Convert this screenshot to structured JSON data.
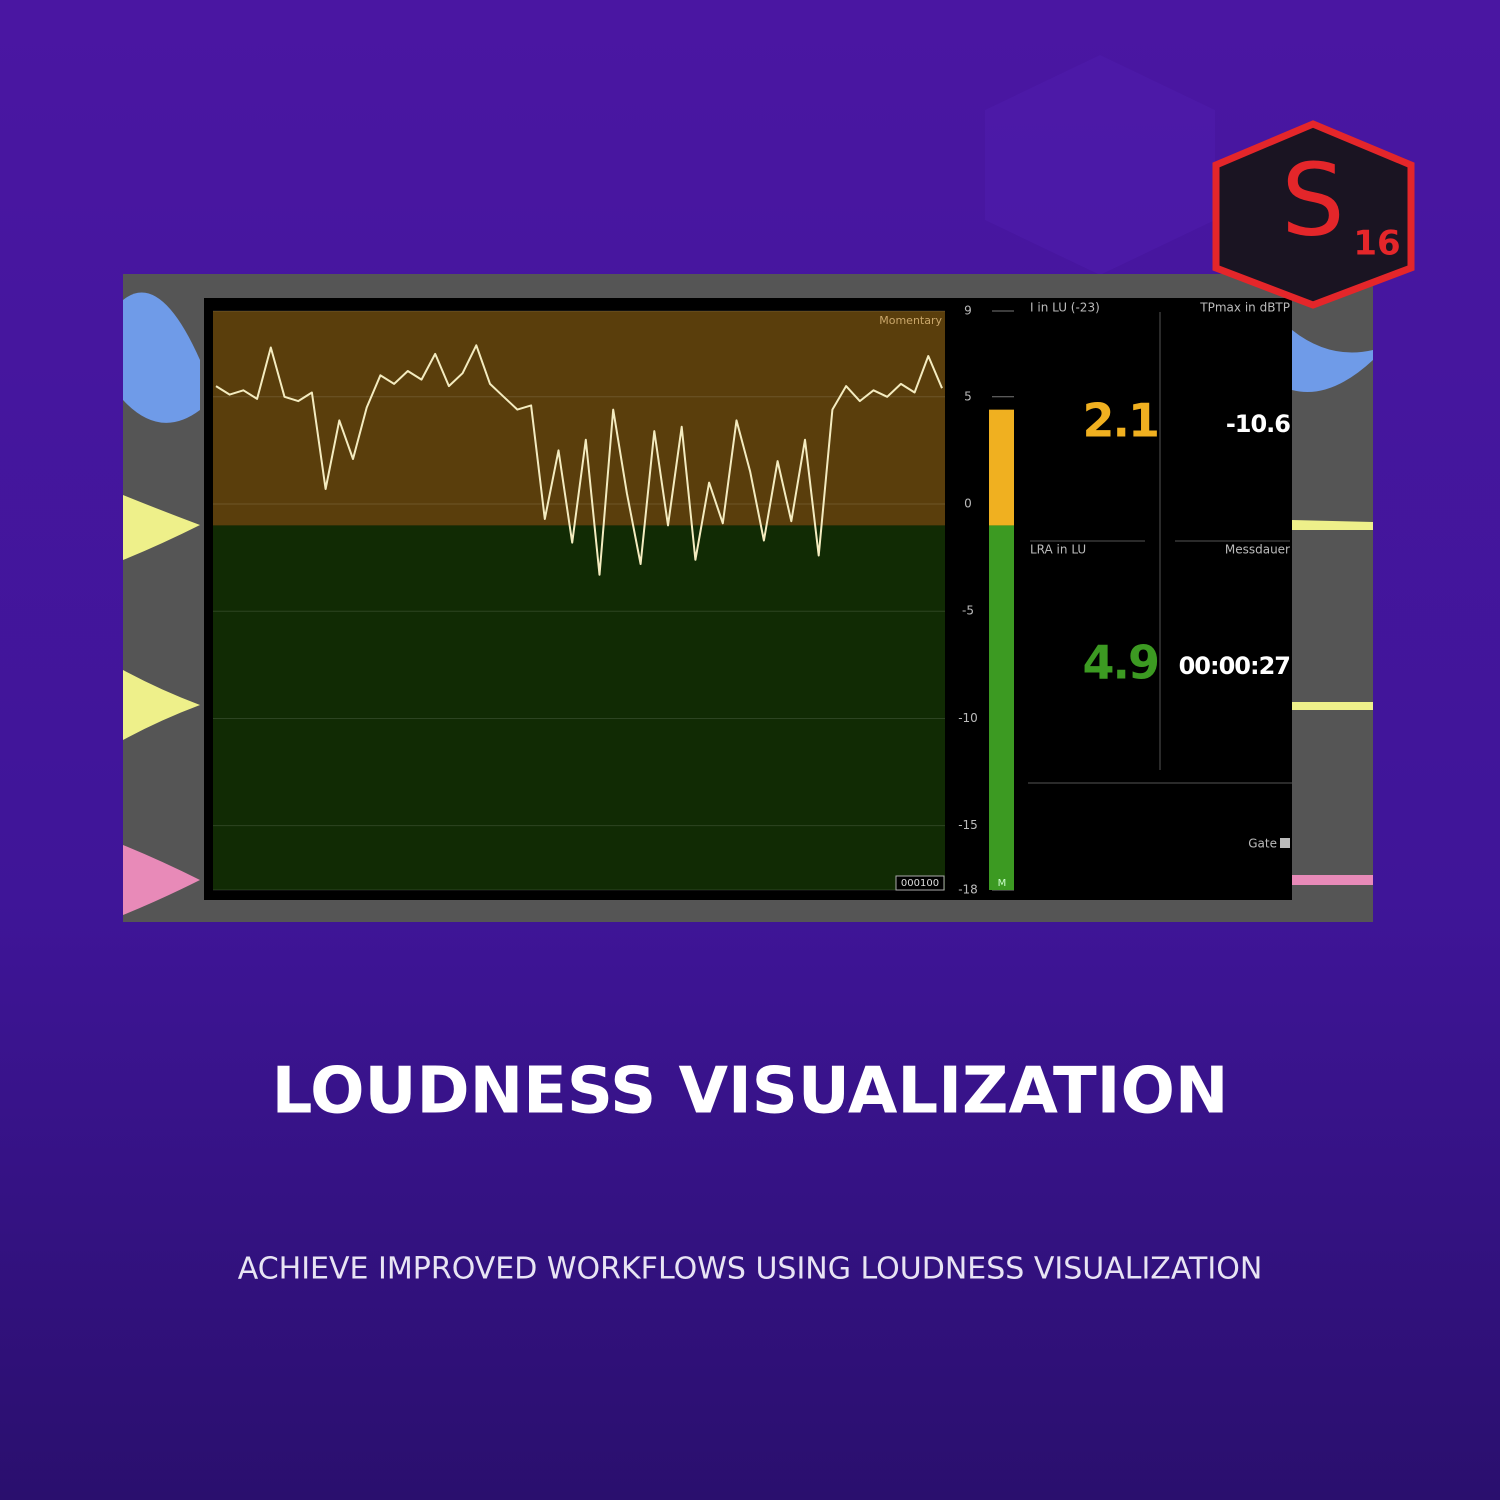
{
  "logo": {
    "letter": "S",
    "version": "16"
  },
  "meter": {
    "graph_label": "Momentary",
    "counter": "000100",
    "channel": "M",
    "scale": [
      9,
      5,
      0,
      -5,
      -10,
      -15,
      -18
    ],
    "level": 4.4,
    "threshold": -1,
    "momentary": [
      5.5,
      5.1,
      5.3,
      4.9,
      7.3,
      5.0,
      4.8,
      5.2,
      0.7,
      3.9,
      2.1,
      4.5,
      6.0,
      5.6,
      6.2,
      5.8,
      7.0,
      5.5,
      6.1,
      7.4,
      5.6,
      5.0,
      4.4,
      4.6,
      -0.7,
      2.5,
      -1.8,
      3.0,
      -3.3,
      4.4,
      0.5,
      -2.8,
      3.4,
      -1.0,
      3.6,
      -2.6,
      1.0,
      -0.9,
      3.9,
      1.5,
      -1.7,
      2.0,
      -0.8,
      3.0,
      -2.4,
      4.4,
      5.5,
      4.8,
      5.3,
      5.0,
      5.6,
      5.2,
      6.9,
      5.4
    ]
  },
  "readouts": [
    {
      "label": "I in LU (-23)",
      "value": "2.1"
    },
    {
      "label": "TPmax in dBTP",
      "value": "-10.6"
    },
    {
      "label": "LRA in LU",
      "value": "4.9"
    },
    {
      "label": "Messdauer",
      "value": "00:00:27"
    }
  ],
  "gate": "Gate",
  "headline": "LOUDNESS VISUALIZATION",
  "subtitle": "ACHIEVE IMPROVED WORKFLOWS USING LOUDNESS VISUALIZATION"
}
